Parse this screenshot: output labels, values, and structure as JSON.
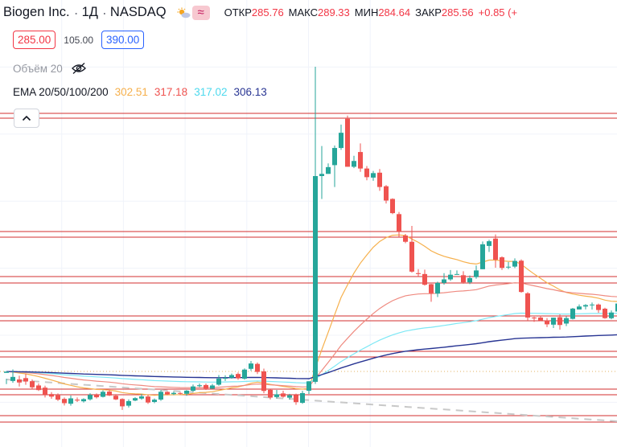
{
  "header": {
    "symbol": "Biogen Inc.",
    "interval": "1Д",
    "exchange": "NASDAQ",
    "ohlc": {
      "open_label": "ОТКР",
      "open": "285.76",
      "high_label": "МАКС",
      "high": "289.33",
      "low_label": "МИН",
      "low": "284.64",
      "close_label": "ЗАКР",
      "close": "285.56",
      "change": "+0.85 (+"
    },
    "icons": [
      "sun-cloud-icon",
      "wave-icon"
    ]
  },
  "prices": {
    "sell": "285.00",
    "spread": "105.00",
    "buy": "390.00"
  },
  "volume": {
    "label": "Объём 20",
    "icon": "eye-crossed-icon"
  },
  "ema": {
    "label": "EMA 20/50/100/200",
    "v20": "302.51",
    "v50": "317.18",
    "v100": "317.02",
    "v200": "306.13"
  },
  "colors": {
    "up": "#26a69a",
    "down": "#ef5350",
    "ema20": "#f6b04c",
    "ema50": "#ef8a80",
    "ema100": "#7ee8f5",
    "ema200": "#283593",
    "level_lines": "#d32f2f"
  },
  "chart_data": {
    "type": "candlestick",
    "x": "daily bars",
    "candles": [
      [
        0,
        0.02,
        0.0212,
        0.0146,
        0.0097
      ],
      [
        1,
        0.0126,
        0.0163,
        0.0232,
        0.0109
      ],
      [
        2,
        0.014,
        0.0112,
        0.0174,
        0.0075
      ],
      [
        3,
        0.0152,
        0.0121,
        0.0194,
        0.0091
      ],
      [
        4,
        0.0124,
        0.0068,
        0.014,
        0.0051
      ],
      [
        5,
        0.0085,
        0.0043,
        0.0104,
        0.0035
      ],
      [
        6,
        0.0065,
        0.0001,
        0.0083,
        -0.0025
      ],
      [
        7,
        0.0006,
        -0.0017,
        0.0024,
        -0.0037
      ],
      [
        8,
        -0.0005,
        -0.0045,
        0.0012,
        -0.0057
      ],
      [
        9,
        -0.0038,
        -0.0077,
        -0.0025,
        -0.0098
      ],
      [
        10,
        -0.0082,
        -0.0033,
        -0.0006,
        -0.01
      ],
      [
        11,
        -0.0045,
        -0.0053,
        -0.0025,
        -0.0066
      ],
      [
        12,
        -0.006,
        -0.004,
        -0.0032,
        -0.0072
      ],
      [
        13,
        -0.0042,
        -0.0001,
        0.0014,
        -0.0053
      ],
      [
        14,
        -0.0001,
        -0.0023,
        0.0012,
        -0.0034
      ],
      [
        15,
        -0.0019,
        0.0027,
        0.004,
        -0.0025
      ],
      [
        16,
        0.0029,
        -0.0007,
        0.0041,
        -0.0012
      ],
      [
        17,
        -0.0009,
        -0.0043,
        -0.0003,
        -0.0049
      ],
      [
        18,
        -0.0039,
        -0.0106,
        -0.0032,
        -0.0139
      ],
      [
        19,
        -0.01,
        -0.0058,
        -0.0042,
        -0.0117
      ],
      [
        20,
        -0.0053,
        -0.0031,
        -0.0023,
        -0.0059
      ],
      [
        21,
        -0.0035,
        -0.0015,
        0.0006,
        -0.0046
      ],
      [
        22,
        -0.0016,
        -0.0071,
        0.0002,
        -0.0084
      ],
      [
        23,
        -0.0066,
        -0.0045,
        -0.0034,
        -0.0077
      ],
      [
        24,
        -0.0044,
        0.0027,
        0.0043,
        -0.0056
      ],
      [
        25,
        0.0026,
        0.0004,
        0.0031,
        -0.0003
      ],
      [
        26,
        0.0006,
        0.0017,
        0.0029,
        -0.0003
      ],
      [
        27,
        0.0016,
        0.0011,
        0.0023,
        0.0
      ],
      [
        28,
        0.0009,
        0.0037,
        0.0043,
        -0.001
      ],
      [
        29,
        0.0036,
        0.0076,
        0.0094,
        0.0026
      ],
      [
        30,
        0.0079,
        0.0087,
        0.0103,
        0.0068
      ],
      [
        31,
        0.0089,
        0.0057,
        0.0103,
        0.0043
      ],
      [
        32,
        0.0056,
        0.0085,
        0.0099,
        0.0054
      ],
      [
        33,
        0.0092,
        0.0148,
        0.018,
        0.0083
      ],
      [
        34,
        0.0149,
        0.0154,
        0.0178,
        0.0126
      ],
      [
        35,
        0.0156,
        0.018,
        0.0194,
        0.0146
      ],
      [
        36,
        0.019,
        0.015,
        0.0204,
        0.0137
      ],
      [
        37,
        0.0147,
        0.023,
        0.0241,
        0.0138
      ],
      [
        38,
        0.0237,
        0.0286,
        0.0309,
        0.0219
      ],
      [
        39,
        0.0282,
        0.0209,
        0.0295,
        0.0189
      ],
      [
        40,
        0.0214,
        0.0035,
        0.0239,
        0.0014
      ],
      [
        41,
        0.0045,
        -0.0026,
        0.0049,
        -0.0043
      ],
      [
        42,
        -0.0021,
        0.0004,
        0.0044,
        -0.0034
      ],
      [
        43,
        0.0012,
        -0.0018,
        0.0037,
        -0.0027
      ],
      [
        44,
        -0.0027,
        -0.0005,
        0.0008,
        -0.0045
      ],
      [
        45,
        -0.0002,
        -0.0068,
        0.001,
        -0.0092
      ],
      [
        46,
        -0.0074,
        0.0015,
        0.0036,
        -0.0083
      ],
      [
        47,
        0.0037,
        0.0123,
        0.0123,
        0.0007
      ],
      [
        48,
        0.0118,
        0.2,
        0.3,
        0.0099
      ],
      [
        49,
        0.2,
        0.202,
        0.2275,
        0.179
      ],
      [
        50,
        0.202,
        0.2082,
        0.2116,
        0.2021
      ],
      [
        51,
        0.21,
        0.2257,
        0.2279,
        0.19
      ],
      [
        52,
        0.2257,
        0.2396,
        0.2471,
        0.224
      ],
      [
        53,
        0.2524,
        0.2085,
        0.2553,
        0.2085
      ],
      [
        54,
        0.2085,
        0.2138,
        0.2186,
        0.2073
      ],
      [
        55,
        0.222,
        0.2069,
        0.2299,
        0.2039
      ],
      [
        56,
        0.2069,
        0.199,
        0.2092,
        0.1961
      ],
      [
        57,
        0.1986,
        0.2027,
        0.2047,
        0.1957
      ],
      [
        58,
        0.2031,
        0.19,
        0.2064,
        0.1865
      ],
      [
        59,
        0.1907,
        0.1776,
        0.1917,
        0.1749
      ],
      [
        60,
        0.1791,
        0.1661,
        0.1797,
        0.1652
      ],
      [
        61,
        0.1652,
        0.1492,
        0.1672,
        0.1443
      ],
      [
        62,
        0.1456,
        0.1399,
        0.1471,
        0.1386
      ],
      [
        63,
        0.1399,
        0.1126,
        0.1544,
        0.1117
      ],
      [
        64,
        0.1112,
        0.1104,
        0.1149,
        0.1082
      ],
      [
        65,
        0.1104,
        0.1006,
        0.1144,
        0.0998
      ],
      [
        66,
        0.1011,
        0.0928,
        0.1015,
        0.085
      ],
      [
        67,
        0.0925,
        0.1023,
        0.1034,
        0.0893
      ],
      [
        68,
        0.1023,
        0.1055,
        0.1112,
        0.1006
      ],
      [
        69,
        0.1055,
        0.1098,
        0.1141,
        0.1041
      ],
      [
        70,
        0.1103,
        0.1104,
        0.1137,
        0.1098
      ],
      [
        71,
        0.1093,
        0.1028,
        0.113,
        0.1016
      ],
      [
        72,
        0.1028,
        0.1067,
        0.1091,
        0.1012
      ],
      [
        73,
        0.1076,
        0.1137,
        0.1182,
        0.1061
      ],
      [
        74,
        0.1148,
        0.1376,
        0.1402,
        0.1148
      ],
      [
        75,
        0.1361,
        0.1404,
        0.1417,
        0.1306
      ],
      [
        76,
        0.1428,
        0.1235,
        0.1466,
        0.1162
      ],
      [
        77,
        0.1257,
        0.116,
        0.1266,
        0.1142
      ],
      [
        78,
        0.1171,
        0.1171,
        0.1214,
        0.1149
      ],
      [
        79,
        0.1172,
        0.1224,
        0.1247,
        0.1158
      ],
      [
        80,
        0.1226,
        0.094,
        0.1238,
        0.0933
      ],
      [
        81,
        0.0928,
        0.0706,
        0.0938,
        0.0681
      ],
      [
        82,
        0.0706,
        0.0702,
        0.0713,
        0.0666
      ],
      [
        83,
        0.0706,
        0.0678,
        0.0723,
        0.0674
      ],
      [
        84,
        0.0678,
        0.0644,
        0.0701,
        0.0619
      ],
      [
        85,
        0.0641,
        0.0705,
        0.0705,
        0.061
      ],
      [
        86,
        0.0709,
        0.0638,
        0.0734,
        0.0596
      ],
      [
        87,
        0.0651,
        0.0701,
        0.0716,
        0.0628
      ],
      [
        88,
        0.0694,
        0.0788,
        0.0794,
        0.0688
      ],
      [
        89,
        0.078,
        0.0807,
        0.0826,
        0.078
      ],
      [
        90,
        0.0807,
        0.082,
        0.0829,
        0.078
      ],
      [
        91,
        0.0819,
        0.0825,
        0.0844,
        0.0779
      ],
      [
        92,
        0.0825,
        0.0775,
        0.0834,
        0.0749
      ],
      [
        93,
        0.0787,
        0.0701,
        0.0796,
        0.0695
      ],
      [
        94,
        0.07,
        0.0752,
        0.0771,
        0.069
      ],
      [
        95,
        0.0761,
        0.0834,
        0.0848,
        0.0752
      ]
    ]
  }
}
